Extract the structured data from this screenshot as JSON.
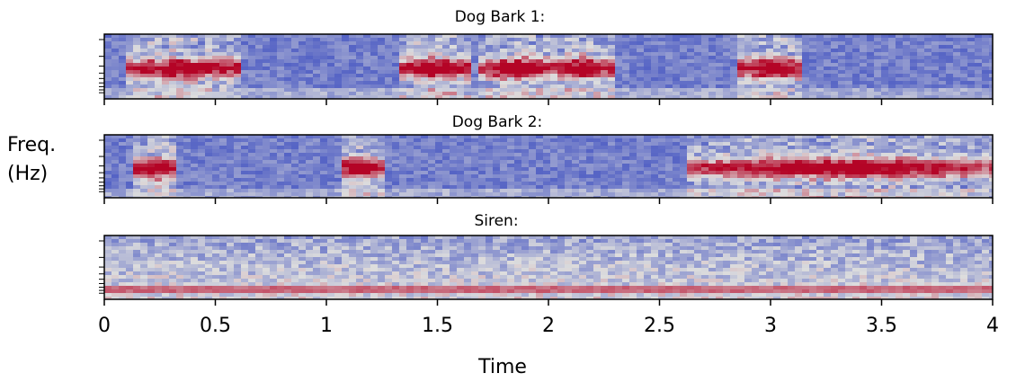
{
  "chart_data": [
    {
      "type": "spectrogram",
      "title": "Dog Bark 1:",
      "xlim": [
        0,
        4
      ]
    },
    {
      "type": "spectrogram",
      "title": "Dog Bark 2:",
      "xlim": [
        0,
        4
      ],
      "ylabel": "Freq. (Hz)"
    },
    {
      "type": "spectrogram",
      "title": "Siren:",
      "xlim": [
        0,
        4
      ],
      "xticks": [
        0,
        0.5,
        1,
        1.5,
        2,
        2.5,
        3,
        3.5,
        4
      ],
      "xlabel": "Time"
    }
  ]
}
